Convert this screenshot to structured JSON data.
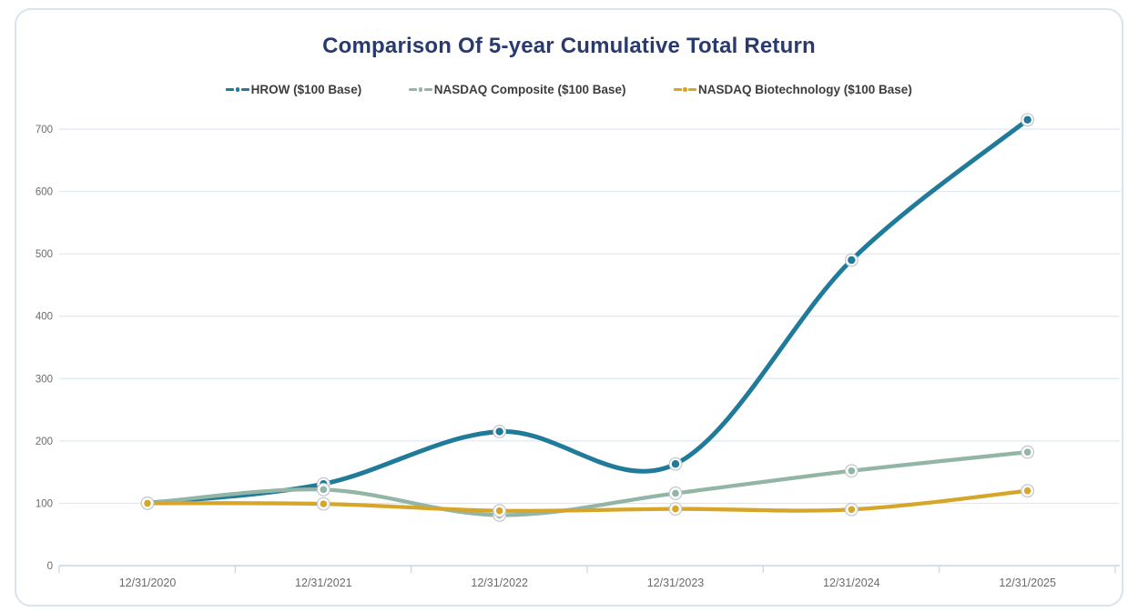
{
  "chart_data": {
    "type": "line",
    "title": "Comparison Of 5-year Cumulative Total Return",
    "categories": [
      "12/31/2020",
      "12/31/2021",
      "12/31/2022",
      "12/31/2023",
      "12/31/2024",
      "12/31/2025"
    ],
    "series": [
      {
        "name": "HROW ($100 Base)",
        "color": "#207a99",
        "values": [
          100,
          131,
          215,
          163,
          490,
          715
        ]
      },
      {
        "name": "NASDAQ Composite ($100 Base)",
        "color": "#92b5a6",
        "values": [
          100,
          122,
          81,
          116,
          152,
          182
        ]
      },
      {
        "name": "NASDAQ Biotechnology ($100 Base)",
        "color": "#d6a62a",
        "values": [
          100,
          99,
          88,
          91,
          90,
          120
        ]
      }
    ],
    "xlabel": "",
    "ylabel": "",
    "y_axis": {
      "min": 0,
      "max": 700,
      "step": 100,
      "tick_labels": [
        "0",
        "100",
        "200",
        "300",
        "400",
        "500",
        "600",
        "700"
      ]
    },
    "legend_position": "top",
    "grid": true,
    "line_style": "smooth",
    "markers": true
  },
  "colors": {
    "title": "#283a6e",
    "legend_text": "#3d3d3d",
    "axis_label": "#6b6b6b",
    "gridline": "#dfe8f2",
    "axis_line": "#c6d5e3",
    "card_border": "#d9e3ed",
    "marker_ring_fill": "#ffffff",
    "marker_ring_stroke": "#c0c7cd",
    "background": "#ffffff"
  }
}
